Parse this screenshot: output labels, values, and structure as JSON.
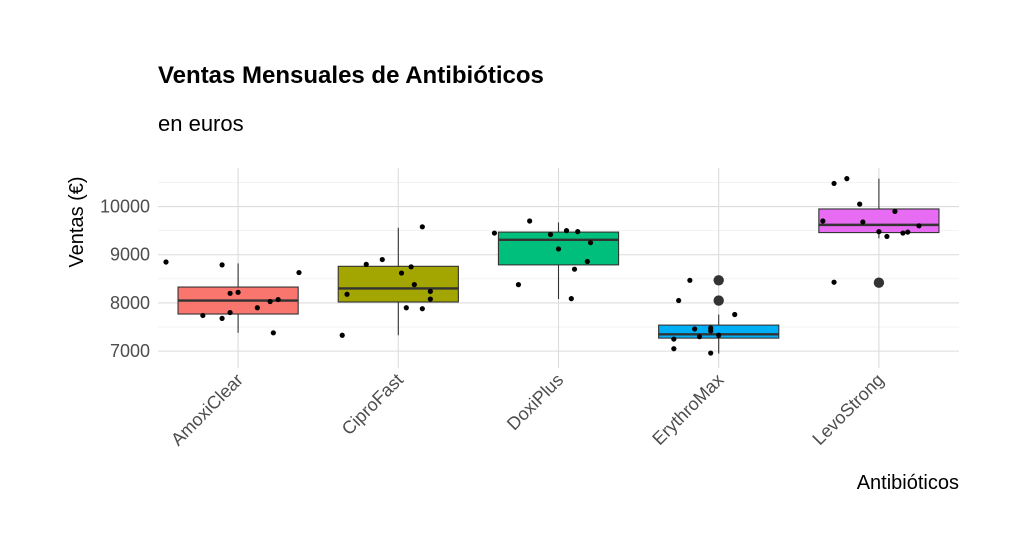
{
  "chart_data": {
    "type": "boxplot",
    "title": "Ventas Mensuales de Antibióticos",
    "subtitle": "en euros",
    "xlabel": "Antibióticos",
    "ylabel": "Ventas (€)",
    "ylim": [
      6650,
      10800
    ],
    "yticks": [
      7000,
      8000,
      9000,
      10000
    ],
    "grid": true,
    "legend": "none",
    "categories": [
      "AmoxiClear",
      "CiproFast",
      "DoxiPlus",
      "ErythroMax",
      "LevoStrong"
    ],
    "colors": [
      "#F8766D",
      "#A3A500",
      "#00BF7D",
      "#00B0F6",
      "#E76BF3"
    ],
    "boxes": [
      {
        "q1": 7770,
        "median": 8050,
        "q3": 8330,
        "whisker_low": 7380,
        "whisker_high": 8820,
        "outliers": []
      },
      {
        "q1": 8020,
        "median": 8300,
        "q3": 8760,
        "whisker_low": 7330,
        "whisker_high": 9560,
        "outliers": []
      },
      {
        "q1": 8790,
        "median": 9310,
        "q3": 9470,
        "whisker_low": 8080,
        "whisker_high": 9670,
        "outliers": []
      },
      {
        "q1": 7270,
        "median": 7350,
        "q3": 7540,
        "whisker_low": 6950,
        "whisker_high": 7760,
        "outliers": [
          8470,
          8050
        ]
      },
      {
        "q1": 9460,
        "median": 9620,
        "q3": 9950,
        "whisker_low": 9340,
        "whisker_high": 10580,
        "outliers": [
          8420
        ]
      }
    ],
    "points": [
      [
        [
          -0.45,
          8850
        ],
        [
          -0.1,
          8790
        ],
        [
          -0.05,
          8200
        ],
        [
          0.0,
          8220
        ],
        [
          0.38,
          8630
        ],
        [
          0.25,
          8070
        ],
        [
          0.2,
          8030
        ],
        [
          0.12,
          7900
        ],
        [
          -0.05,
          7800
        ],
        [
          -0.22,
          7740
        ],
        [
          -0.1,
          7680
        ],
        [
          0.22,
          7380
        ]
      ],
      [
        [
          0.15,
          9580
        ],
        [
          -0.1,
          8900
        ],
        [
          -0.2,
          8800
        ],
        [
          0.08,
          8750
        ],
        [
          0.02,
          8620
        ],
        [
          0.1,
          8380
        ],
        [
          0.2,
          8240
        ],
        [
          -0.32,
          8180
        ],
        [
          0.2,
          8080
        ],
        [
          0.05,
          7900
        ],
        [
          0.15,
          7880
        ],
        [
          -0.35,
          7330
        ]
      ],
      [
        [
          -0.18,
          9700
        ],
        [
          -0.4,
          9450
        ],
        [
          -0.05,
          9420
        ],
        [
          0.05,
          9500
        ],
        [
          0.12,
          9480
        ],
        [
          0.2,
          9250
        ],
        [
          0.0,
          9120
        ],
        [
          0.18,
          8860
        ],
        [
          0.1,
          8700
        ],
        [
          -0.25,
          8380
        ],
        [
          0.08,
          8090
        ]
      ],
      [
        [
          -0.18,
          8470
        ],
        [
          -0.25,
          8050
        ],
        [
          0.1,
          7760
        ],
        [
          -0.05,
          7480
        ],
        [
          -0.15,
          7460
        ],
        [
          -0.05,
          7420
        ],
        [
          0.0,
          7330
        ],
        [
          -0.12,
          7300
        ],
        [
          -0.28,
          7250
        ],
        [
          -0.28,
          7050
        ],
        [
          -0.05,
          6960
        ]
      ],
      [
        [
          -0.28,
          10480
        ],
        [
          -0.2,
          10580
        ],
        [
          -0.12,
          10050
        ],
        [
          0.1,
          9900
        ],
        [
          -0.35,
          9700
        ],
        [
          -0.1,
          9680
        ],
        [
          0.25,
          9600
        ],
        [
          0.0,
          9480
        ],
        [
          0.18,
          9470
        ],
        [
          0.05,
          9380
        ],
        [
          0.15,
          9450
        ],
        [
          -0.28,
          8430
        ]
      ]
    ]
  }
}
